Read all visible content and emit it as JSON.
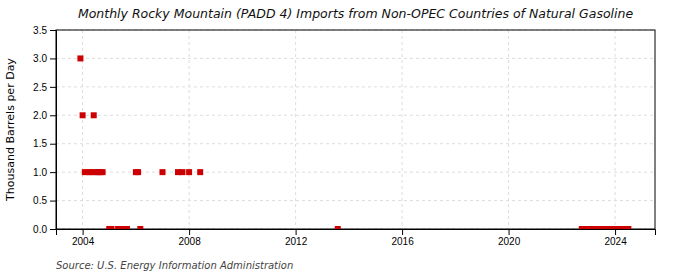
{
  "chart_data": {
    "type": "scatter",
    "title": "Monthly Rocky Mountain (PADD 4) Imports from Non-OPEC Countries of Natural Gasoline",
    "ylabel": "Thousand Barrels per Day",
    "annotations": [
      "Source: U.S. Energy Information Administration"
    ],
    "color": "#cc0000",
    "marker": "square",
    "grid": true,
    "xlim": [
      2003.0,
      2025.5
    ],
    "xticks": [
      2004,
      2008,
      2012,
      2016,
      2020,
      2024
    ],
    "ylim": [
      0.0,
      3.5
    ],
    "yticks": [
      {
        "value": 0.0,
        "label": "0.0"
      },
      0.5,
      {
        "value": 1.0,
        "label": "1.0"
      },
      1.5,
      {
        "value": 2.0,
        "label": "2.0"
      },
      2.5,
      {
        "value": 3.0,
        "label": "3.0"
      },
      3.5
    ],
    "x": [
      2003.917,
      2004.0,
      2004.083,
      2004.25,
      2004.333,
      2004.417,
      2004.5,
      2004.583,
      2004.667,
      2004.75,
      2005.0,
      2005.083,
      2005.333,
      2005.417,
      2005.583,
      2005.667,
      2006.0,
      2006.083,
      2006.167,
      2007.0,
      2007.583,
      2007.75,
      2008.0,
      2008.417,
      2013.583,
      2022.75,
      2022.917,
      2023.0,
      2023.083,
      2023.167,
      2023.333,
      2023.417,
      2023.5,
      2023.667,
      2023.75,
      2023.833,
      2024.0,
      2024.083,
      2024.25,
      2024.333,
      2024.417,
      2024.5
    ],
    "values": [
      3.0,
      2.0,
      1.0,
      1.0,
      1.0,
      2.0,
      1.0,
      1.0,
      1.0,
      1.0,
      0.0,
      0.0,
      0.0,
      0.0,
      0.0,
      0.0,
      1.0,
      1.0,
      0.0,
      1.0,
      1.0,
      1.0,
      1.0,
      1.0,
      0.0,
      0.0,
      0.0,
      0.0,
      0.0,
      0.0,
      0.0,
      0.0,
      0.0,
      0.0,
      0.0,
      0.0,
      0.0,
      0.0,
      0.0,
      0.0,
      0.0,
      0.0
    ]
  }
}
